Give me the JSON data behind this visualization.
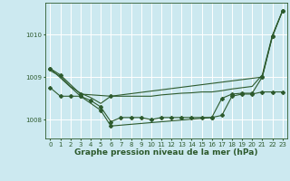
{
  "background_color": "#cce9f0",
  "plot_bg_color": "#cce9f0",
  "grid_color": "#ffffff",
  "line_color": "#2d5a2d",
  "xlabel": "Graphe pression niveau de la mer (hPa)",
  "xlabel_fontsize": 6.5,
  "tick_fontsize": 5,
  "xlim": [
    -0.5,
    23.5
  ],
  "ylim": [
    1007.55,
    1010.75
  ],
  "yticks": [
    1008,
    1009,
    1010
  ],
  "xticks": [
    0,
    1,
    2,
    3,
    4,
    5,
    6,
    7,
    8,
    9,
    10,
    11,
    12,
    13,
    14,
    15,
    16,
    17,
    18,
    19,
    20,
    21,
    22,
    23
  ],
  "series": [
    {
      "x": [
        0,
        1,
        2,
        3,
        4,
        5,
        6,
        7,
        8,
        9,
        10,
        11,
        12,
        13,
        14,
        15,
        16,
        17,
        18,
        19,
        20,
        21,
        22,
        23
      ],
      "y": [
        1008.75,
        1008.55,
        1008.55,
        1008.55,
        1008.45,
        1008.3,
        1007.95,
        1008.05,
        1008.05,
        1008.05,
        1008.0,
        1008.05,
        1008.05,
        1008.05,
        1008.05,
        1008.05,
        1008.05,
        1008.1,
        1008.55,
        1008.6,
        1008.6,
        1008.65,
        1008.65,
        1008.65
      ],
      "marker": "D",
      "markersize": 2.0,
      "linewidth": 0.8,
      "zorder": 3
    },
    {
      "x": [
        0,
        1,
        3,
        6,
        21,
        22,
        23
      ],
      "y": [
        1009.2,
        1009.05,
        1008.6,
        1008.55,
        1009.0,
        1009.95,
        1010.55
      ],
      "marker": "D",
      "markersize": 2.0,
      "linewidth": 0.8,
      "zorder": 3
    },
    {
      "x": [
        0,
        3,
        5,
        6,
        16,
        17,
        18,
        19,
        20,
        21,
        22,
        23
      ],
      "y": [
        1009.2,
        1008.55,
        1008.22,
        1007.85,
        1008.05,
        1008.5,
        1008.6,
        1008.62,
        1008.62,
        1009.0,
        1009.95,
        1010.55
      ],
      "marker": "D",
      "markersize": 2.0,
      "linewidth": 0.8,
      "zorder": 3
    },
    {
      "x": [
        0,
        1,
        2,
        3,
        4,
        5,
        6,
        7,
        8,
        9,
        10,
        11,
        12,
        13,
        14,
        15,
        16,
        17,
        18,
        19,
        20,
        21,
        22,
        23
      ],
      "y": [
        1009.15,
        1009.02,
        1008.78,
        1008.62,
        1008.52,
        1008.38,
        1008.55,
        1008.55,
        1008.55,
        1008.55,
        1008.55,
        1008.58,
        1008.6,
        1008.62,
        1008.63,
        1008.65,
        1008.65,
        1008.68,
        1008.72,
        1008.75,
        1008.78,
        1009.05,
        1009.98,
        1010.55
      ],
      "marker": null,
      "markersize": 0,
      "linewidth": 0.8,
      "zorder": 2
    }
  ]
}
